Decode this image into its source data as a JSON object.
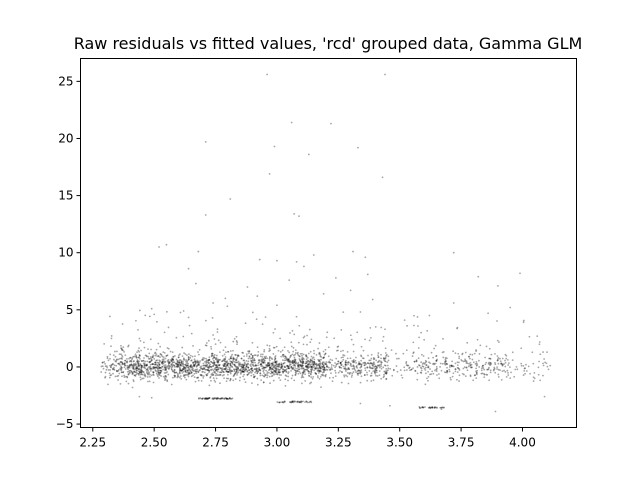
{
  "chart_data": {
    "type": "scatter",
    "title": "Raw residuals vs fitted values, 'rcd' grouped data, Gamma GLM",
    "xlabel": "",
    "ylabel": "",
    "xlim": [
      2.2,
      4.22
    ],
    "ylim": [
      -5.3,
      27.0
    ],
    "xticks": [
      2.25,
      2.5,
      2.75,
      3.0,
      3.25,
      3.5,
      3.75,
      4.0
    ],
    "xtick_labels": [
      "2.25",
      "2.50",
      "2.75",
      "3.00",
      "3.25",
      "3.50",
      "3.75",
      "4.00"
    ],
    "yticks": [
      -5,
      0,
      5,
      10,
      15,
      20,
      25
    ],
    "ytick_labels": [
      "−5",
      "0",
      "5",
      "10",
      "15",
      "20",
      "25"
    ],
    "grid": false,
    "marker_color": "#000000",
    "marker_alpha": 0.35,
    "series": [
      {
        "description_of_distribution": "dense band near residual 0 over fitted 2.3–4.1, densest 2.45–3.2; sparser cluster 3.55–3.95; lower edge near −2.7 to −4; sparse positive outliers up to ~25.5",
        "points": [
          {
            "x": 2.96,
            "y": 25.6
          },
          {
            "x": 3.44,
            "y": 25.6
          },
          {
            "x": 3.06,
            "y": 21.4
          },
          {
            "x": 3.22,
            "y": 21.3
          },
          {
            "x": 2.71,
            "y": 19.7
          },
          {
            "x": 2.99,
            "y": 19.3
          },
          {
            "x": 3.33,
            "y": 19.2
          },
          {
            "x": 3.13,
            "y": 18.6
          },
          {
            "x": 2.97,
            "y": 16.9
          },
          {
            "x": 3.43,
            "y": 16.6
          },
          {
            "x": 2.81,
            "y": 14.7
          },
          {
            "x": 2.71,
            "y": 13.3
          },
          {
            "x": 3.07,
            "y": 13.4
          },
          {
            "x": 3.09,
            "y": 13.2
          },
          {
            "x": 2.55,
            "y": 10.7
          },
          {
            "x": 2.52,
            "y": 10.5
          },
          {
            "x": 2.68,
            "y": 10.1
          },
          {
            "x": 3.31,
            "y": 10.1
          },
          {
            "x": 3.72,
            "y": 10.0
          },
          {
            "x": 3.36,
            "y": 9.6
          },
          {
            "x": 3.15,
            "y": 9.8
          },
          {
            "x": 2.93,
            "y": 9.4
          },
          {
            "x": 3.0,
            "y": 9.3
          },
          {
            "x": 3.08,
            "y": 9.2
          },
          {
            "x": 3.11,
            "y": 8.8
          },
          {
            "x": 2.64,
            "y": 8.6
          },
          {
            "x": 3.99,
            "y": 8.2
          },
          {
            "x": 3.37,
            "y": 8.1
          },
          {
            "x": 3.82,
            "y": 7.9
          },
          {
            "x": 3.24,
            "y": 7.8
          },
          {
            "x": 3.05,
            "y": 7.6
          },
          {
            "x": 2.67,
            "y": 7.3
          },
          {
            "x": 2.88,
            "y": 7.0
          },
          {
            "x": 3.9,
            "y": 7.1
          },
          {
            "x": 3.3,
            "y": 6.7
          },
          {
            "x": 3.19,
            "y": 6.4
          },
          {
            "x": 2.92,
            "y": 6.2
          },
          {
            "x": 2.79,
            "y": 6.0
          },
          {
            "x": 3.39,
            "y": 5.9
          },
          {
            "x": 2.74,
            "y": 5.6
          },
          {
            "x": 3.72,
            "y": 5.6
          },
          {
            "x": 3.0,
            "y": 5.4
          },
          {
            "x": 2.49,
            "y": 5.1
          },
          {
            "x": 3.95,
            "y": 5.2
          },
          {
            "x": 2.62,
            "y": 4.9
          },
          {
            "x": 3.27,
            "y": 4.8
          },
          {
            "x": 3.86,
            "y": 4.7
          },
          {
            "x": 2.5,
            "y": 4.6
          },
          {
            "x": 3.52,
            "y": 4.1
          },
          {
            "x": 3.53,
            "y": 3.6
          },
          {
            "x": 3.44,
            "y": 3.3
          },
          {
            "x": 4.06,
            "y": 2.7
          },
          {
            "x": 4.1,
            "y": 1.3
          },
          {
            "x": 4.09,
            "y": -2.6
          },
          {
            "x": 3.89,
            "y": -3.9
          },
          {
            "x": 3.67,
            "y": -3.7
          },
          {
            "x": 3.58,
            "y": -3.5
          },
          {
            "x": 3.46,
            "y": -3.4
          },
          {
            "x": 3.34,
            "y": -3.2
          },
          {
            "x": 3.14,
            "y": -3.1
          },
          {
            "x": 2.49,
            "y": -2.7
          },
          {
            "x": 2.44,
            "y": -2.6
          }
        ]
      }
    ]
  }
}
